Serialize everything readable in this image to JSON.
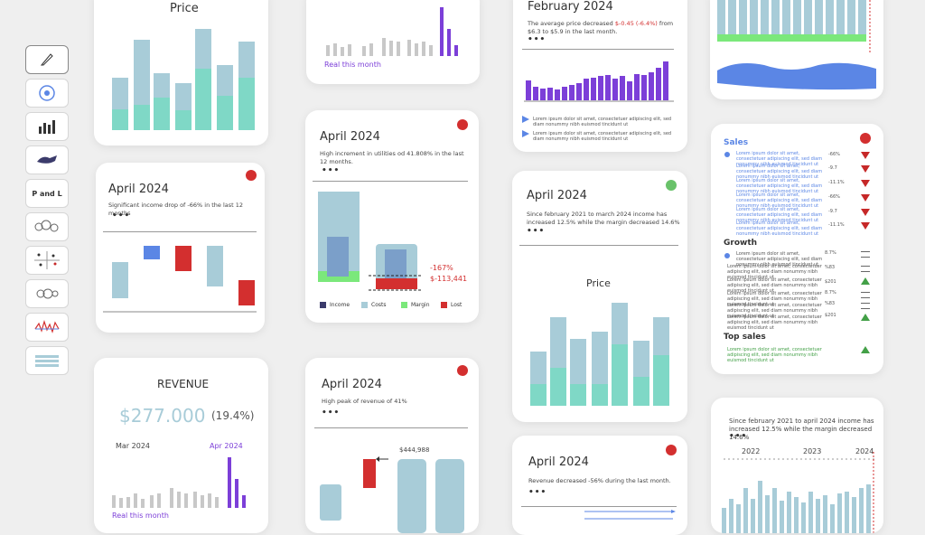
{
  "toolbar": {
    "items": [
      {
        "icon": "pen-icon"
      },
      {
        "icon": "globe-icon"
      },
      {
        "icon": "bar-chart-icon"
      },
      {
        "icon": "whale-icon"
      },
      {
        "label": "P and L",
        "icon": ""
      },
      {
        "icon": "bubbles-icon"
      },
      {
        "icon": "scatter-icon"
      },
      {
        "icon": "circles-icon"
      },
      {
        "icon": "spike-chart-icon"
      },
      {
        "icon": "table-icon"
      }
    ]
  },
  "colors": {
    "teal": "#7fd8c6",
    "lightblue": "#a8ccd8",
    "purple": "#7c3fd8",
    "red": "#d32f2f",
    "green": "#4ec14e",
    "blue": "#5b86e5",
    "grey": "#c8c8c8"
  },
  "cards": {
    "price_top": {
      "title": "Price"
    },
    "real_top": {
      "link": "Real this month"
    },
    "february": {
      "title": "February 2024",
      "text_before": "The average price decreased ",
      "highlight": "$-0.45 (-6.4%)",
      "text_after": " from $6.3 to $5.9 in the last month.",
      "dots": "•••",
      "lorem1": "Lorem ipsum dolor sit amet, consectetuer adipiscing elit, sed diam nonummy nibh euismod tincidunt ut",
      "lorem2": "Lorem ipsum dolor sit amet, consectetuer adipiscing elit, sed diam nonummy nibh euismod tincidunt ut"
    },
    "income_april": {
      "title": "April 2024",
      "text": "Significant income drop of -66% in the last 12 months",
      "dots": "•••"
    },
    "utilities_april": {
      "title": "April 2024",
      "text": "High increment in utilities od 41.808% in the last 12 months.",
      "dots": "•••",
      "pct": "-167%",
      "amount": "$-113,441",
      "legend": [
        "Income",
        "Costs",
        "Margin",
        "Lost"
      ]
    },
    "margin_april": {
      "title": "April 2024",
      "text": "Since february 2021 to march 2024 income has increased 12.5% while the margin decreased 14.6%",
      "dots": "•••",
      "mid_title": "Price"
    },
    "sales": {
      "title": "Sales",
      "growth_title": "Growth",
      "top_title": "Top sales",
      "lorem": "Lorem ipsum dolor sit amet, consectetuer adipiscing elit, sed diam nonummy nibh euismod tincidunt ut",
      "sales_values": [
        "-66%",
        "-9.7",
        "-11.1%",
        "-66%",
        "-9.7",
        "-11.1%"
      ],
      "growth_values": [
        "8.7%",
        "%83",
        "$201",
        "8.7%",
        "%83",
        "$201"
      ]
    },
    "revenue": {
      "title": "REVENUE",
      "value": "$277.000",
      "change": "(19.4%)",
      "left_month": "Mar 2024",
      "right_month": "Apr 2024",
      "link": "Real this month"
    },
    "peak_april": {
      "title": "April 2024",
      "text": "High peak of revenue of 41%",
      "dots": "•••",
      "value": "$444,988"
    },
    "revenue_decrease": {
      "title": "April 2024",
      "text": "Revenue decreased -56% during the last month.",
      "dots": "•••"
    },
    "since_feb": {
      "text": "Since february 2021 to april 2024 income has increased 12.5% while the margin decreased 14.6%",
      "dots": "•••",
      "years": [
        "2022",
        "2023",
        "2024"
      ]
    }
  },
  "chart_data": [
    {
      "type": "bar",
      "title": "Price",
      "series": [
        {
          "name": "",
          "values": [
            0.6,
            0.65,
            0.42,
            0.9,
            0.52,
            0.6,
            0.51
          ]
        }
      ]
    },
    {
      "type": "bar",
      "title": "",
      "series": [
        {
          "name": "",
          "values": [
            18,
            22,
            25,
            60,
            30
          ]
        }
      ]
    },
    {
      "type": "bar",
      "title": "",
      "series": [
        {
          "name": "",
          "values": [
            12,
            10,
            11,
            13,
            14,
            15,
            16,
            17,
            19,
            22,
            24,
            26,
            30,
            28,
            32,
            34,
            36,
            38,
            40,
            44,
            46,
            70
          ]
        }
      ]
    },
    {
      "type": "bar",
      "title": "Price",
      "series": [
        {
          "name": "",
          "values": [
            0.45,
            0.55,
            0.4,
            0.6,
            0.82,
            0.65,
            0.58
          ]
        }
      ]
    }
  ]
}
